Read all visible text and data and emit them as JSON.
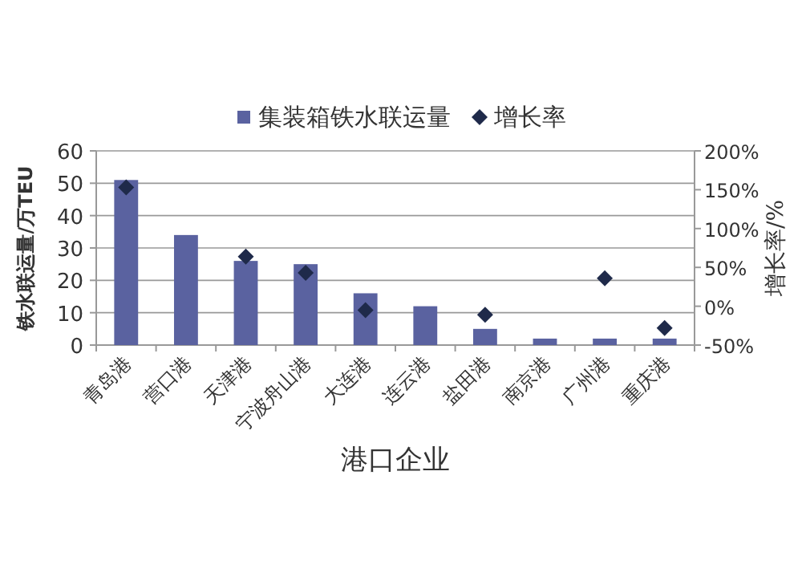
{
  "chart_data": {
    "type": "bar",
    "xlabel": "港口企业",
    "ylabel": "铁水联运量/万TEU",
    "y2label": "增长率/%",
    "categories": [
      "青岛港",
      "营口港",
      "天津港",
      "宁波舟山港",
      "大连港",
      "连云港",
      "盐田港",
      "南京港",
      "广州港",
      "重庆港"
    ],
    "series": [
      {
        "name": "集装箱铁水联运量",
        "color": "#5a62a0",
        "values": [
          51,
          34,
          26,
          25,
          16,
          12,
          5,
          2,
          2,
          2
        ]
      },
      {
        "name": "增长率",
        "type": "scatter",
        "axis": "y2",
        "marker": "diamond",
        "color": "#1f2a4a",
        "values": [
          153,
          null,
          64,
          43,
          -5,
          null,
          -11,
          null,
          36,
          -28
        ]
      }
    ],
    "ylim": [
      0,
      60
    ],
    "yticks": [
      0,
      10,
      20,
      30,
      40,
      50,
      60
    ],
    "y2lim": [
      -50,
      200
    ],
    "y2ticks": [
      {
        "value": -50,
        "label": "-50%"
      },
      {
        "value": 0,
        "label": "0%"
      },
      {
        "value": 50,
        "label": "50%"
      },
      {
        "value": 100,
        "label": "100%"
      },
      {
        "value": 150,
        "label": "150%"
      },
      {
        "value": 200,
        "label": "200%"
      }
    ],
    "grid": "y",
    "legend": "top"
  }
}
